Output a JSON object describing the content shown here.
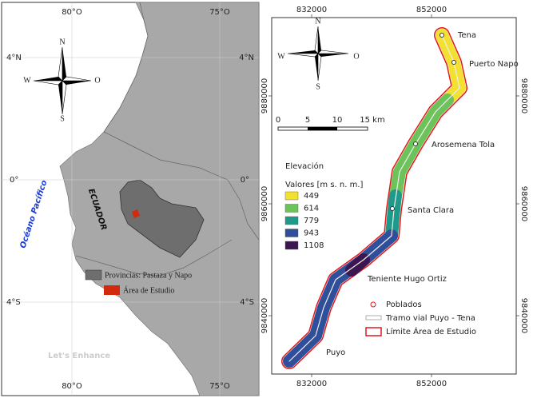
{
  "left_map": {
    "top_labels": [
      "80°O",
      "75°O"
    ],
    "bottom_labels": [
      "80°O",
      "75°O"
    ],
    "left_labels": [
      "4°N",
      "0°",
      "4°S"
    ],
    "right_labels": [
      "4°N",
      "0°",
      "4°S"
    ],
    "compass": {
      "n": "N",
      "s": "S",
      "w": "W",
      "e": "O"
    },
    "ocean": "Océano Pacífico",
    "country": "ECUADOR",
    "legend": [
      {
        "label": "Provincias: Pastaza y Napo",
        "color": "#6e6e6e"
      },
      {
        "label": "Área de Estudio",
        "color": "#d22a0c"
      }
    ],
    "watermark": "Let's Enhance"
  },
  "right_map": {
    "top_labels": [
      "832000",
      "852000"
    ],
    "bottom_labels": [
      "832000",
      "852000"
    ],
    "left_labels": [
      "9880000",
      "9860000",
      "9840000"
    ],
    "right_labels": [
      "9880000",
      "9860000",
      "9840000"
    ],
    "compass": {
      "n": "N",
      "s": "S",
      "w": "W",
      "e": "O"
    },
    "scale": [
      "0",
      "5",
      "10",
      "15 km"
    ],
    "elevation_title": "Elevación",
    "elevation_subtitle": "Valores [m s. n. m.]",
    "elevation_classes": [
      {
        "value": 449,
        "color": "#f2e130"
      },
      {
        "value": 614,
        "color": "#6cc35a"
      },
      {
        "value": 779,
        "color": "#1f9a8a"
      },
      {
        "value": 943,
        "color": "#2f4f9a"
      },
      {
        "value": 1108,
        "color": "#3b1650"
      }
    ],
    "towns": [
      "Tena",
      "Puerto Napo",
      "Arosemena Tola",
      "Santa Clara",
      "Teniente Hugo Ortiz",
      "Puyo"
    ],
    "legend": [
      "Poblados",
      "Tramo vial Puyo - Tena",
      "Límite Área de Estudio"
    ]
  }
}
